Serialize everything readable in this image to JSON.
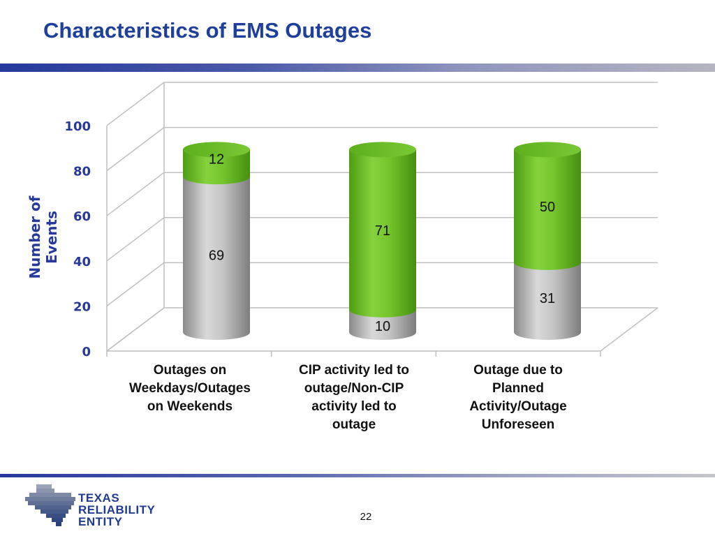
{
  "slide": {
    "title": "Characteristics of EMS Outages",
    "page_number": "22"
  },
  "logo": {
    "line1": "TEXAS",
    "line2": "RELIABILITY",
    "line3": "ENTITY"
  },
  "colors": {
    "title": "#1e3f9c",
    "bottom_segment": "#b3b3b3",
    "top_segment": "#72c12a",
    "axis_title": "#26399b"
  },
  "chart_data": {
    "type": "bar",
    "stacked": true,
    "style": "3d-cylinder",
    "ylabel": "Number of Events",
    "ylim": [
      0,
      100
    ],
    "yticks": [
      0,
      20,
      40,
      60,
      80,
      100
    ],
    "grid": true,
    "categories": [
      "Outages on Weekdays/Outages on Weekends",
      "CIP activity led to outage/Non-CIP activity led to outage",
      "Outage due to Planned Activity/Outage Unforeseen"
    ],
    "category_lines": [
      [
        "Outages on",
        "Weekdays/Outages",
        "on Weekends"
      ],
      [
        "CIP activity led to",
        "outage/Non-CIP",
        "activity led to",
        "outage"
      ],
      [
        "Outage due to",
        "Planned",
        "Activity/Outage",
        "Unforeseen"
      ]
    ],
    "series": [
      {
        "values": [
          69,
          10,
          31
        ],
        "color": "#b3b3b3"
      },
      {
        "values": [
          12,
          71,
          50
        ],
        "color": "#72c12a"
      }
    ]
  }
}
